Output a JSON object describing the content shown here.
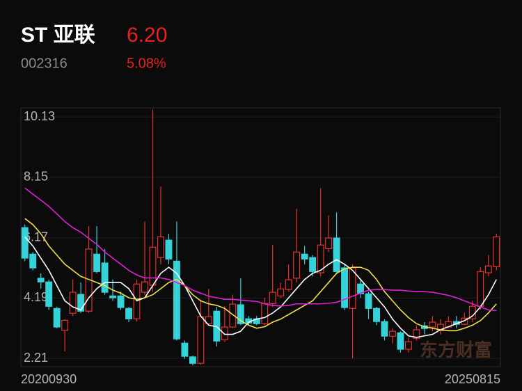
{
  "header": {
    "title": "ST 亚联",
    "price": "6.20",
    "code": "002316",
    "change": "5.08%"
  },
  "chart_data": {
    "type": "candlestick",
    "watermark": "东方财富",
    "categories": [
      "20200930",
      null,
      null,
      null,
      null,
      null,
      null,
      null,
      null,
      null,
      null,
      null,
      null,
      null,
      null,
      null,
      null,
      null,
      null,
      null,
      null,
      null,
      null,
      null,
      null,
      null,
      null,
      null,
      null,
      null,
      null,
      null,
      null,
      null,
      null,
      null,
      null,
      null,
      null,
      null,
      null,
      null,
      null,
      null,
      null,
      null,
      null,
      null,
      null,
      null,
      null,
      null,
      null,
      null,
      null,
      null,
      null,
      null,
      null,
      "20250815"
    ],
    "open": [
      6.5,
      5.63,
      4.84,
      4.72,
      3.85,
      3.13,
      3.69,
      4.31,
      3.76,
      5.63,
      5.34,
      4.26,
      4.26,
      3.85,
      3.51,
      4.38,
      4.61,
      5.52,
      6.09,
      5.4,
      2.71,
      2.26,
      2.05,
      3.35,
      3.76,
      2.82,
      3.24,
      3.97,
      3.51,
      3.51,
      3.35,
      4.01,
      4.26,
      4.47,
      4.84,
      5.63,
      5.52,
      5.02,
      5.81,
      6.16,
      5.18,
      3.85,
      4.65,
      4.33,
      3.85,
      3.42,
      2.94,
      3.05,
      2.51,
      2.87,
      3.28,
      3.24,
      3.12,
      3.24,
      3.42,
      3.33,
      3.51,
      3.92,
      5.02,
      5.22
    ],
    "high": [
      6.6,
      5.7,
      5.0,
      4.8,
      3.9,
      3.5,
      4.8,
      4.7,
      6.55,
      6.55,
      5.8,
      4.8,
      4.4,
      3.9,
      4.8,
      6.7,
      10.38,
      7.85,
      6.3,
      6.7,
      2.8,
      2.3,
      4.15,
      4.49,
      3.9,
      3.92,
      4.3,
      4.84,
      3.6,
      3.6,
      4.2,
      5.93,
      4.7,
      5.29,
      7.12,
      5.9,
      5.6,
      7.8,
      6.9,
      7.0,
      5.3,
      5.3,
      4.8,
      4.4,
      3.9,
      3.5,
      3.2,
      3.1,
      2.9,
      3.3,
      3.4,
      3.6,
      3.5,
      3.6,
      3.6,
      3.7,
      4.1,
      5.2,
      5.6,
      6.3
    ],
    "low": [
      5.4,
      5.1,
      4.5,
      3.8,
      3.2,
      2.44,
      3.6,
      3.7,
      3.7,
      5.0,
      4.3,
      4.1,
      3.8,
      3.4,
      3.42,
      4.3,
      4.4,
      5.3,
      5.3,
      2.8,
      2.2,
      1.98,
      2.0,
      3.3,
      2.6,
      2.75,
      3.2,
      3.3,
      3.3,
      3.3,
      3.3,
      3.9,
      4.2,
      4.4,
      4.7,
      5.3,
      4.9,
      4.9,
      5.7,
      5.0,
      3.8,
      2.21,
      4.2,
      3.5,
      3.3,
      2.8,
      2.7,
      2.4,
      2.4,
      2.8,
      3.0,
      3.1,
      3.0,
      3.2,
      3.2,
      3.3,
      3.4,
      3.8,
      4.9,
      5.1
    ],
    "close": [
      5.5,
      5.18,
      4.72,
      3.92,
      3.24,
      3.46,
      4.38,
      3.76,
      5.8,
      5.06,
      4.38,
      4.2,
      3.88,
      3.51,
      4.65,
      4.72,
      5.86,
      6.2,
      5.47,
      2.85,
      2.28,
      2.05,
      3.58,
      3.58,
      2.78,
      3.24,
      3.99,
      3.35,
      3.37,
      3.35,
      4.01,
      4.38,
      4.49,
      4.79,
      5.7,
      5.47,
      5.06,
      5.93,
      6.16,
      5.06,
      3.88,
      5.18,
      4.33,
      3.85,
      3.42,
      2.94,
      3.1,
      2.51,
      2.76,
      3.15,
      3.19,
      3.4,
      3.33,
      3.42,
      3.33,
      3.53,
      3.92,
      5.06,
      5.24,
      6.2
    ],
    "up_color": "#e8322d",
    "down_color": "#35d3d9",
    "lines": [
      {
        "color": "#ffffff",
        "values": [
          6.2,
          5.9,
          5.5,
          5.1,
          4.6,
          4.1,
          3.9,
          3.8,
          4.2,
          4.5,
          4.7,
          4.7,
          4.7,
          4.5,
          4.1,
          4.2,
          4.6,
          5.0,
          5.2,
          5.0,
          4.6,
          4.1,
          3.6,
          3.3,
          3.25,
          3.0,
          3.0,
          3.1,
          3.4,
          3.5,
          3.55,
          3.7,
          3.9,
          4.2,
          4.5,
          4.8,
          5.0,
          5.1,
          5.3,
          5.45,
          5.3,
          5.1,
          4.8,
          4.5,
          4.2,
          3.9,
          3.5,
          3.2,
          2.95,
          2.9,
          2.95,
          3.0,
          3.15,
          3.25,
          3.35,
          3.45,
          3.6,
          3.9,
          4.3,
          4.8
        ]
      },
      {
        "color": "#f2df4a",
        "values": [
          6.8,
          6.6,
          6.3,
          5.9,
          5.6,
          5.3,
          5.1,
          4.9,
          4.8,
          4.7,
          4.6,
          4.45,
          4.35,
          4.2,
          4.15,
          4.2,
          4.3,
          4.5,
          4.7,
          4.8,
          4.6,
          4.3,
          4.1,
          4.0,
          3.95,
          3.85,
          3.65,
          3.45,
          3.3,
          3.2,
          3.25,
          3.4,
          3.5,
          3.65,
          3.8,
          3.95,
          4.1,
          4.4,
          4.7,
          5.0,
          5.15,
          5.2,
          5.2,
          5.1,
          4.8,
          4.4,
          4.1,
          3.8,
          3.55,
          3.35,
          3.25,
          3.2,
          3.15,
          3.12,
          3.12,
          3.2,
          3.3,
          3.45,
          3.7,
          4.0
        ]
      },
      {
        "color": "#e020d8",
        "values": [
          7.8,
          7.6,
          7.4,
          7.2,
          6.95,
          6.7,
          6.5,
          6.35,
          6.15,
          5.95,
          5.7,
          5.5,
          5.3,
          5.1,
          4.95,
          4.85,
          4.85,
          4.85,
          4.8,
          4.7,
          4.6,
          4.45,
          4.35,
          4.25,
          4.2,
          4.15,
          4.15,
          4.12,
          4.1,
          4.08,
          4.0,
          3.95,
          3.93,
          3.95,
          4.0,
          4.0,
          4.0,
          4.0,
          4.02,
          4.05,
          4.15,
          4.25,
          4.35,
          4.45,
          4.47,
          4.47,
          4.45,
          4.45,
          4.42,
          4.4,
          4.4,
          4.38,
          4.33,
          4.28,
          4.2,
          4.1,
          4.0,
          3.9,
          3.8,
          3.78
        ]
      }
    ],
    "ylim": [
      1.94,
      10.43
    ],
    "yticks": [
      10.13,
      8.15,
      6.17,
      4.19,
      2.21
    ],
    "grid": true
  }
}
